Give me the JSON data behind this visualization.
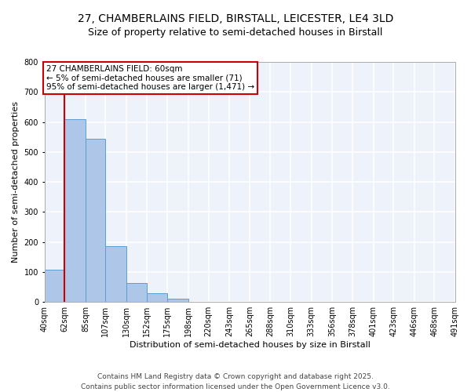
{
  "title_line1": "27, CHAMBERLAINS FIELD, BIRSTALL, LEICESTER, LE4 3LD",
  "title_line2": "Size of property relative to semi-detached houses in Birstall",
  "xlabel": "Distribution of semi-detached houses by size in Birstall",
  "ylabel": "Number of semi-detached properties",
  "annotation_title": "27 CHAMBERLAINS FIELD: 60sqm",
  "annotation_line2": "← 5% of semi-detached houses are smaller (71)",
  "annotation_line3": "95% of semi-detached houses are larger (1,471) →",
  "subject_value": 60,
  "bin_edges": [
    40,
    62,
    85,
    107,
    130,
    152,
    175,
    198,
    220,
    243,
    265,
    288,
    310,
    333,
    356,
    378,
    401,
    423,
    446,
    468,
    491
  ],
  "bar_heights": [
    108,
    610,
    545,
    185,
    62,
    28,
    10,
    1,
    0,
    0,
    0,
    0,
    0,
    0,
    0,
    0,
    0,
    0,
    0,
    0
  ],
  "bar_color": "#aec6e8",
  "bar_edge_color": "#5a9fd4",
  "highlight_color": "#cc0000",
  "background_color": "#eef2fb",
  "grid_color": "#ffffff",
  "ylim": [
    0,
    800
  ],
  "yticks": [
    0,
    100,
    200,
    300,
    400,
    500,
    600,
    700,
    800
  ],
  "footer_line1": "Contains HM Land Registry data © Crown copyright and database right 2025.",
  "footer_line2": "Contains public sector information licensed under the Open Government Licence v3.0.",
  "title_fontsize": 10,
  "subtitle_fontsize": 9,
  "axis_label_fontsize": 8,
  "tick_fontsize": 7,
  "annotation_fontsize": 7.5,
  "footer_fontsize": 6.5
}
